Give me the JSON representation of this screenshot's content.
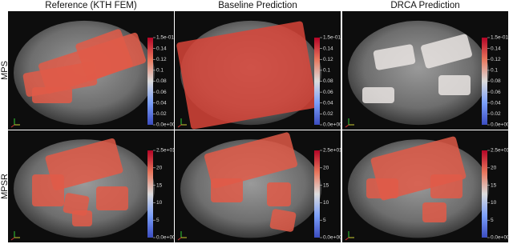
{
  "columns": [
    "Reference (KTH FEM)",
    "Baseline Prediction",
    "DRCA Prediction"
  ],
  "rows": [
    {
      "label": "MPS",
      "ticks": [
        "1.5e-01",
        "0.14",
        "0.12",
        "0.1",
        "0.08",
        "0.06",
        "0.04",
        "0.02",
        "0.0e+00"
      ]
    },
    {
      "label": "MPSR",
      "ticks": [
        "2.5e+01",
        "20",
        "15",
        "10",
        "5",
        "0.0e+00"
      ]
    }
  ]
}
